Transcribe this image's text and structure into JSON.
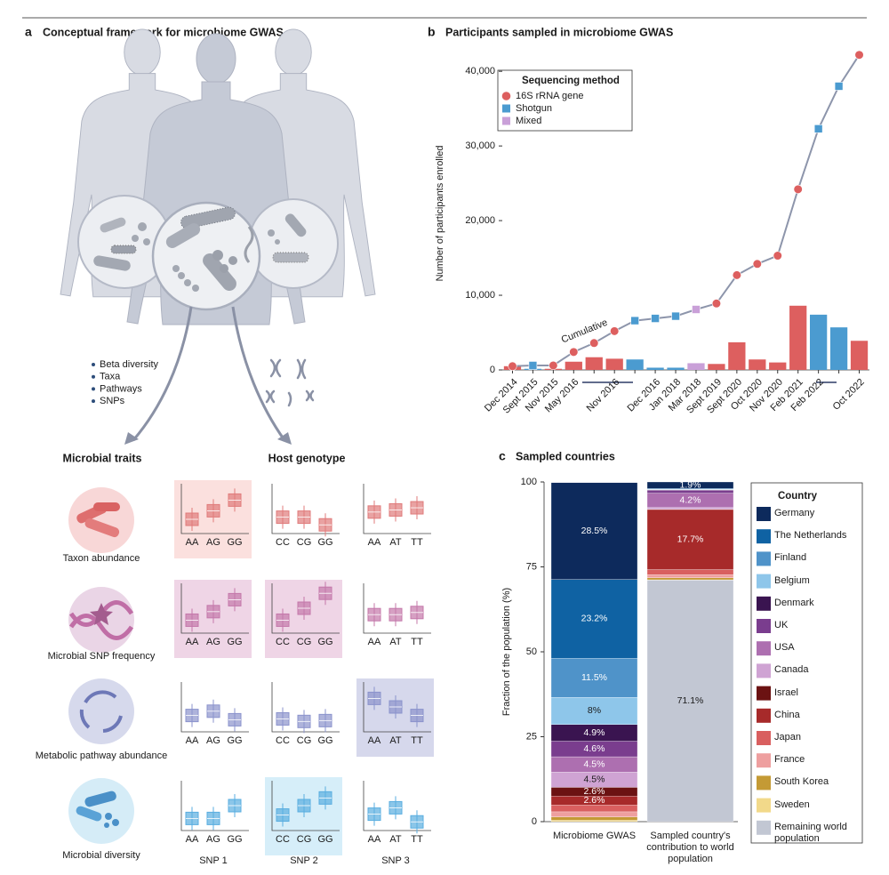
{
  "panel_a": {
    "label": "a",
    "title": "Conceptual framework for microbiome GWAS",
    "features": [
      "Beta diversity",
      "Taxa",
      "Pathways",
      "SNPs"
    ],
    "microbial_traits": "Microbial traits",
    "host_genotype": "Host genotype",
    "rows": [
      "Taxon abundance",
      "Microbial SNP frequency",
      "Metabolic pathway abundance",
      "Microbial diversity"
    ],
    "snps": [
      {
        "name": "SNP 1",
        "genotypes": [
          "AA",
          "AG",
          "GG"
        ]
      },
      {
        "name": "SNP 2",
        "genotypes": [
          "CC",
          "CG",
          "GG"
        ]
      },
      {
        "name": "SNP 3",
        "genotypes": [
          "AA",
          "AT",
          "TT"
        ]
      }
    ]
  },
  "chart_data": [
    {
      "type": "combo",
      "label": "b",
      "title": "Participants sampled in microbiome GWAS",
      "y_label": "Number of participants enrolled",
      "categories": [
        "Dec 2014",
        "Sept 2015",
        "Nov 2015",
        "May 2016",
        null,
        "Nov 2016",
        null,
        "Dec 2016",
        "Jan 2018",
        "Mar 2018",
        "Sept 2019",
        "Sept 2020",
        "Oct 2020",
        "Nov 2020",
        "Feb 2021",
        "Feb 2022",
        null,
        "Oct 2022"
      ],
      "legend_title": "Sequencing method",
      "series": [
        {
          "name": "16S rRNA gene",
          "color": "#dd5f5f",
          "marker": "circle",
          "values": [
            500,
            null,
            150,
            1100,
            1700,
            1500,
            null,
            null,
            null,
            null,
            800,
            3700,
            1400,
            1000,
            8600,
            null,
            null,
            3900
          ]
        },
        {
          "name": "Shotgun",
          "color": "#4b9bd0",
          "marker": "square",
          "values": [
            null,
            150,
            null,
            null,
            null,
            null,
            1400,
            300,
            300,
            null,
            null,
            null,
            null,
            null,
            null,
            7400,
            5700,
            null
          ]
        },
        {
          "name": "Mixed",
          "color": "#c9a0d8",
          "marker": "square",
          "values": [
            null,
            null,
            null,
            null,
            null,
            null,
            null,
            null,
            null,
            900,
            null,
            null,
            null,
            null,
            null,
            null,
            null,
            null
          ]
        }
      ],
      "cumulative": {
        "name": "Cumulative",
        "color": "#8d95ab",
        "values": [
          500,
          600,
          600,
          2400,
          3600,
          5200,
          6600,
          6900,
          7200,
          8100,
          8900,
          12700,
          14200,
          15300,
          24200,
          32300,
          38000,
          42200
        ]
      },
      "ylim": [
        0,
        43000
      ],
      "yticks": [
        0,
        {
          "value": 10000,
          "label": "10,000"
        },
        {
          "value": 20000,
          "label": "20,000"
        },
        {
          "value": 30000,
          "label": "30,000"
        },
        {
          "value": 40000,
          "label": "40,000"
        }
      ]
    },
    {
      "type": "bar",
      "stacked": true,
      "label": "c",
      "title": "Sampled countries",
      "y_label": "Fraction of the population (%)",
      "categories": [
        "Microbiome GWAS",
        "Sampled country's contribution to world population"
      ],
      "legend_title": "Country",
      "series": [
        {
          "name": "Germany",
          "color": "#0d2a5c",
          "values": [
            28.5,
            1.9
          ],
          "value_labels": [
            "28.5%",
            "1.9%"
          ]
        },
        {
          "name": "The Netherlands",
          "color": "#0f62a3",
          "values": [
            23.2,
            0.2
          ],
          "value_labels": [
            "23.2%",
            null
          ]
        },
        {
          "name": "Finland",
          "color": "#4f93c9",
          "values": [
            11.5,
            0.1
          ],
          "value_labels": [
            "11.5%",
            null
          ]
        },
        {
          "name": "Belgium",
          "color": "#8ec6ea",
          "values": [
            8,
            0.1
          ],
          "value_labels": [
            "8%",
            null
          ]
        },
        {
          "name": "Denmark",
          "color": "#3a1450",
          "values": [
            4.9,
            0.1
          ],
          "value_labels": [
            "4.9%",
            null
          ]
        },
        {
          "name": "UK",
          "color": "#7a3d8e",
          "values": [
            4.6,
            0.9
          ],
          "value_labels": [
            "4.6%",
            null
          ]
        },
        {
          "name": "USA",
          "color": "#ad6fb0",
          "values": [
            4.5,
            4.2
          ],
          "value_labels": [
            "4.5%",
            "4.2%"
          ]
        },
        {
          "name": "Canada",
          "color": "#cfa3d3",
          "values": [
            4.5,
            0.5
          ],
          "value_labels": [
            "4.5%",
            null
          ]
        },
        {
          "name": "Israel",
          "color": "#6b1212",
          "values": [
            2.6,
            0.1
          ],
          "value_labels": [
            "2.6%",
            null
          ]
        },
        {
          "name": "China",
          "color": "#a72a2a",
          "values": [
            2.6,
            17.7
          ],
          "value_labels": [
            "2.6%",
            "17.7%"
          ]
        },
        {
          "name": "Japan",
          "color": "#d95f5f",
          "values": [
            2.0,
            1.5
          ],
          "value_labels": [
            null,
            null
          ]
        },
        {
          "name": "France",
          "color": "#ee9f9f",
          "values": [
            1.5,
            0.9
          ],
          "value_labels": [
            null,
            null
          ]
        },
        {
          "name": "South Korea",
          "color": "#c49a35",
          "values": [
            1.0,
            0.6
          ],
          "value_labels": [
            null,
            null
          ]
        },
        {
          "name": "Sweden",
          "color": "#f2d98a",
          "values": [
            0.4,
            0.1
          ],
          "value_labels": [
            null,
            null
          ]
        },
        {
          "name": "Remaining world population",
          "color": "#c2c7d3",
          "values": [
            null,
            71.1
          ],
          "value_labels": [
            null,
            "71.1%"
          ]
        }
      ],
      "ylim": [
        0,
        100
      ],
      "yticks": [
        0,
        25,
        50,
        75,
        100
      ]
    }
  ]
}
